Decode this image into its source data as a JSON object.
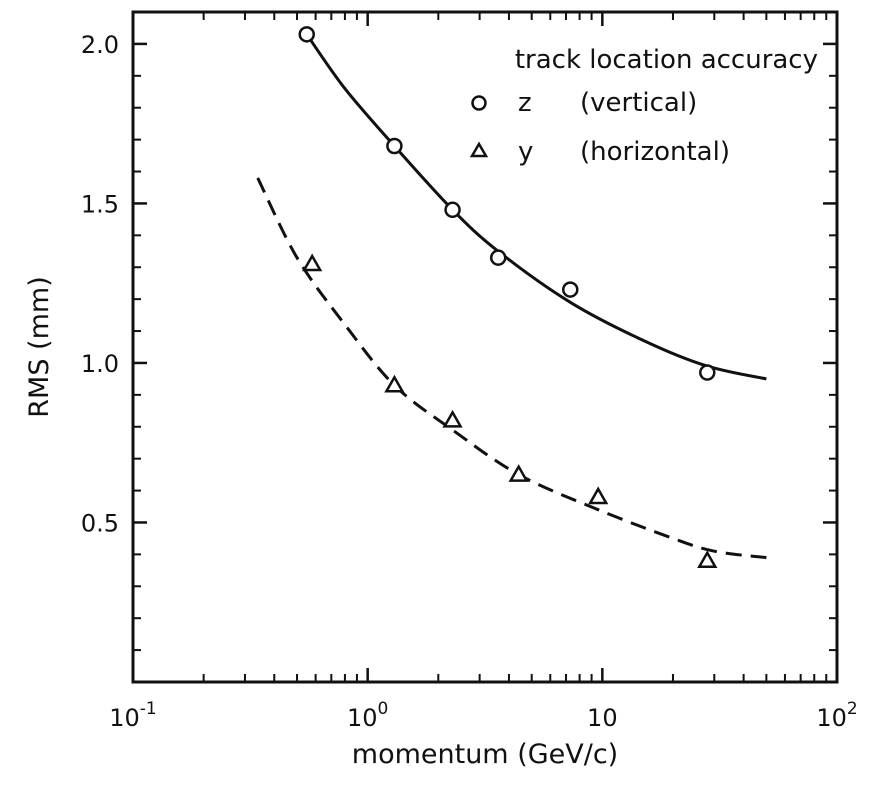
{
  "chart_data": {
    "type": "scatter",
    "title": "",
    "xlabel": "momentum (GeV/c)",
    "ylabel": "RMS (mm)",
    "xscale": "log",
    "xlim": [
      0.1,
      100
    ],
    "ylim": [
      0,
      2.1
    ],
    "x_ticks": [
      {
        "value": 0.1,
        "base": "10",
        "exp": "-1"
      },
      {
        "value": 1,
        "base": "10",
        "exp": "0"
      },
      {
        "value": 10,
        "base": "10",
        "exp": ""
      },
      {
        "value": 100,
        "base": "10",
        "exp": "2"
      }
    ],
    "y_ticks": [
      {
        "value": 0.5,
        "label": "0.5"
      },
      {
        "value": 1.0,
        "label": "1.0"
      },
      {
        "value": 1.5,
        "label": "1.5"
      },
      {
        "value": 2.0,
        "label": "2.0"
      }
    ],
    "grid": false,
    "legend": {
      "title": "track location accuracy",
      "position": "top-right",
      "entries": [
        {
          "symbol": "circle",
          "var": "z",
          "desc": "(vertical)"
        },
        {
          "symbol": "triangle",
          "var": "y",
          "desc": "(horizontal)"
        }
      ]
    },
    "series": [
      {
        "name": "z (vertical)",
        "marker": "circle",
        "points": [
          [
            0.55,
            2.03
          ],
          [
            1.3,
            1.68
          ],
          [
            2.3,
            1.48
          ],
          [
            3.6,
            1.33
          ],
          [
            7.3,
            1.23
          ],
          [
            28,
            0.97
          ]
        ],
        "fit": {
          "style": "solid",
          "points": [
            [
              0.55,
              2.03
            ],
            [
              0.8,
              1.86
            ],
            [
              1.3,
              1.68
            ],
            [
              2.3,
              1.48
            ],
            [
              3.6,
              1.35
            ],
            [
              7.3,
              1.19
            ],
            [
              15,
              1.07
            ],
            [
              28,
              0.99
            ],
            [
              50,
              0.95
            ]
          ]
        }
      },
      {
        "name": "y (horizontal)",
        "marker": "triangle",
        "points": [
          [
            0.58,
            1.31
          ],
          [
            1.3,
            0.93
          ],
          [
            2.3,
            0.82
          ],
          [
            4.4,
            0.65
          ],
          [
            9.6,
            0.58
          ],
          [
            28,
            0.38
          ]
        ],
        "fit": {
          "style": "dashed",
          "points": [
            [
              0.34,
              1.58
            ],
            [
              0.5,
              1.33
            ],
            [
              0.8,
              1.12
            ],
            [
              1.3,
              0.93
            ],
            [
              2.3,
              0.79
            ],
            [
              4.4,
              0.65
            ],
            [
              9.6,
              0.54
            ],
            [
              20,
              0.45
            ],
            [
              30,
              0.41
            ],
            [
              50,
              0.39
            ]
          ]
        }
      }
    ]
  }
}
